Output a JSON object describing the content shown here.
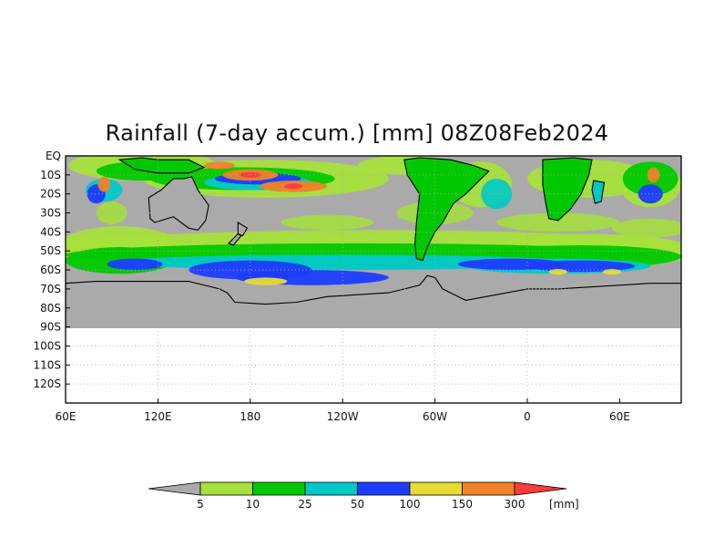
{
  "title": "Rainfall (7-day accum.) [mm] 08Z08Feb2024",
  "map": {
    "lat_labels": [
      "EQ",
      "10S",
      "20S",
      "30S",
      "40S",
      "50S",
      "60S",
      "70S",
      "80S",
      "90S",
      "100S",
      "110S",
      "120S"
    ],
    "lon_labels": [
      "60E",
      "120E",
      "180",
      "120W",
      "60W",
      "0",
      "60E"
    ],
    "lat_range": [
      0,
      -130
    ],
    "lon_range": [
      60,
      460
    ],
    "data_lat_range": [
      0,
      -90
    ],
    "grid": true
  },
  "colorbar": {
    "unit": "[mm]",
    "bins": [
      {
        "label": "5",
        "color": "#a6e03c"
      },
      {
        "label": "10",
        "color": "#00c800"
      },
      {
        "label": "25",
        "color": "#00c8c8"
      },
      {
        "label": "50",
        "color": "#1e3cff"
      },
      {
        "label": "100",
        "color": "#e6dc32"
      },
      {
        "label": "150",
        "color": "#f08228"
      },
      {
        "label": "300",
        "color": "#fa3c3c"
      }
    ],
    "below_color": "#aaaaaa",
    "above_color": "#fa3c3c"
  },
  "colors": {
    "ocean_no_rain": "#aaaaaa",
    "coast": "#000000",
    "light_green": "#a6e03c",
    "green": "#00c800",
    "cyan": "#00c8c8",
    "blue": "#1e3cff",
    "yellow": "#e6dc32",
    "orange": "#f08228",
    "red": "#fa3c3c"
  }
}
